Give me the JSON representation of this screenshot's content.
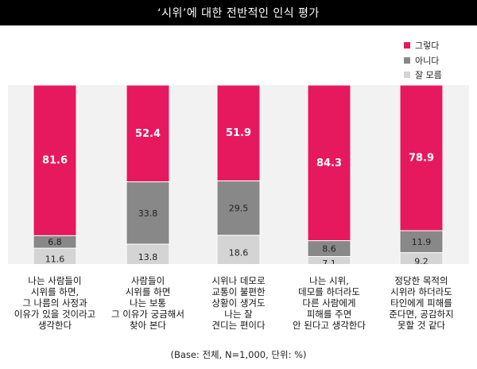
{
  "chart_data": {
    "type": "bar",
    "stacked": true,
    "orientation": "vertical",
    "title": "‘시위’에 대한 전반적인 인식 평가",
    "categories": [
      [
        "나는 사람들이",
        "시위를 하면,",
        "그 나름의 사정과",
        "이유가 있을 것이라고",
        "생각한다"
      ],
      [
        "사람들이",
        "시위를 하면",
        "나는 보통",
        "그 이유가 궁금해서",
        "찾아 본다"
      ],
      [
        "시위나 데모로",
        "교통이 불편한",
        "상황이 생겨도",
        "나는 잘",
        "견디는 편이다"
      ],
      [
        "나는 시위,",
        "데모를 하더라도",
        "다른 사람에게",
        "피해를 주면",
        "안 된다고 생각한다"
      ],
      [
        "정당한 목적의",
        "시위라 하더라도",
        "타인에게 피해를",
        "준다면, 공감하지",
        "못할 것 같다"
      ]
    ],
    "series": [
      {
        "name": "그렇다",
        "color": "#e6185e",
        "values": [
          81.6,
          52.4,
          51.9,
          84.3,
          78.9
        ]
      },
      {
        "name": "아니다",
        "color": "#888888",
        "values": [
          6.8,
          33.8,
          29.5,
          8.6,
          11.9
        ]
      },
      {
        "name": "잘 모름",
        "color": "#d4d4d4",
        "values": [
          11.6,
          13.8,
          18.6,
          7.1,
          9.2
        ]
      }
    ],
    "legend_position": "top-right",
    "grid": false
  },
  "note": "(Base: 전체, N=1,000, 단위: %)"
}
